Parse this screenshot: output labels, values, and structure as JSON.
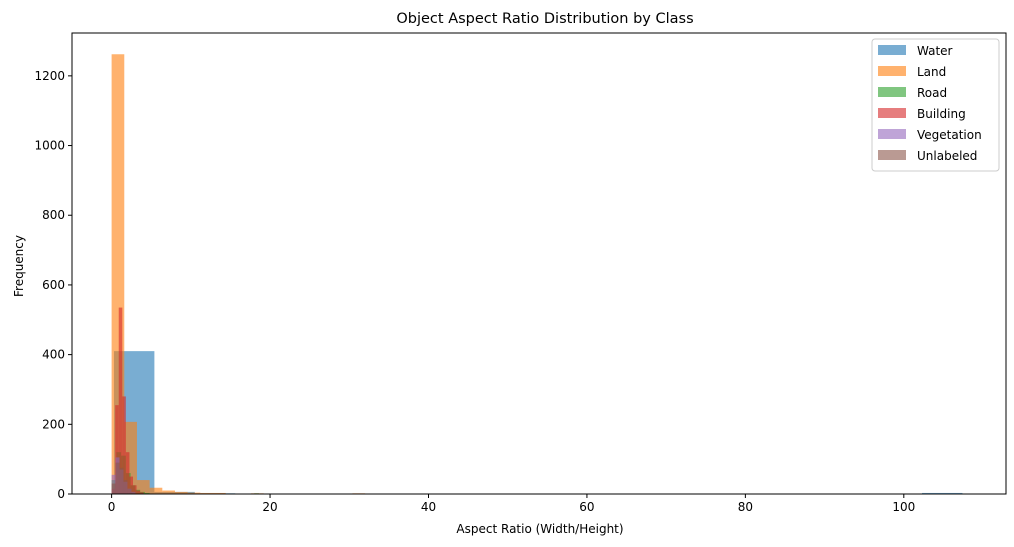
{
  "chart_data": {
    "type": "bar",
    "title": "Object Aspect Ratio Distribution by Class",
    "xlabel": "Aspect Ratio (Width/Height)",
    "ylabel": "Frequency",
    "xlim": [
      -5.0,
      112.9
    ],
    "ylim": [
      0,
      1323
    ],
    "xticks": [
      0,
      20,
      40,
      60,
      80,
      100
    ],
    "yticks": [
      0,
      200,
      400,
      600,
      800,
      1000,
      1200
    ],
    "grid": false,
    "legend_placement": "top-right",
    "series": [
      {
        "name": "Water",
        "color": "#1f77b4",
        "bins": [
          {
            "x0": 0.3,
            "x1": 5.4,
            "count": 410
          },
          {
            "x0": 5.4,
            "x1": 10.5,
            "count": 6
          },
          {
            "x0": 10.5,
            "x1": 15.6,
            "count": 2
          },
          {
            "x0": 102.3,
            "x1": 107.4,
            "count": 3
          }
        ]
      },
      {
        "name": "Land",
        "color": "#ff7f0e",
        "bins": [
          {
            "x0": 0.0,
            "x1": 1.6,
            "count": 1262
          },
          {
            "x0": 1.6,
            "x1": 3.2,
            "count": 207
          },
          {
            "x0": 3.2,
            "x1": 4.8,
            "count": 40
          },
          {
            "x0": 4.8,
            "x1": 6.4,
            "count": 18
          },
          {
            "x0": 6.4,
            "x1": 8.0,
            "count": 10
          },
          {
            "x0": 8.0,
            "x1": 9.6,
            "count": 6
          },
          {
            "x0": 9.6,
            "x1": 11.2,
            "count": 4
          },
          {
            "x0": 11.2,
            "x1": 12.8,
            "count": 3
          },
          {
            "x0": 12.8,
            "x1": 14.4,
            "count": 3
          },
          {
            "x0": 17.6,
            "x1": 19.2,
            "count": 2
          },
          {
            "x0": 30.4,
            "x1": 32.0,
            "count": 2
          }
        ]
      },
      {
        "name": "Road",
        "color": "#2ca02c",
        "bins": [
          {
            "x0": 0.0,
            "x1": 0.6,
            "count": 40
          },
          {
            "x0": 0.6,
            "x1": 1.2,
            "count": 120
          },
          {
            "x0": 1.2,
            "x1": 1.8,
            "count": 110
          },
          {
            "x0": 1.8,
            "x1": 2.4,
            "count": 60
          },
          {
            "x0": 2.4,
            "x1": 3.0,
            "count": 25
          },
          {
            "x0": 3.0,
            "x1": 3.6,
            "count": 12
          },
          {
            "x0": 3.6,
            "x1": 4.2,
            "count": 6
          },
          {
            "x0": 4.2,
            "x1": 4.8,
            "count": 3
          },
          {
            "x0": 18.0,
            "x1": 18.6,
            "count": 2
          }
        ]
      },
      {
        "name": "Building",
        "color": "#d62728",
        "bins": [
          {
            "x0": 0.0,
            "x1": 0.45,
            "count": 15
          },
          {
            "x0": 0.45,
            "x1": 0.9,
            "count": 255
          },
          {
            "x0": 0.9,
            "x1": 1.35,
            "count": 535
          },
          {
            "x0": 1.35,
            "x1": 1.8,
            "count": 280
          },
          {
            "x0": 1.8,
            "x1": 2.25,
            "count": 120
          },
          {
            "x0": 2.25,
            "x1": 2.7,
            "count": 50
          },
          {
            "x0": 2.7,
            "x1": 3.15,
            "count": 25
          },
          {
            "x0": 3.15,
            "x1": 3.6,
            "count": 10
          },
          {
            "x0": 3.6,
            "x1": 4.05,
            "count": 5
          }
        ]
      },
      {
        "name": "Vegetation",
        "color": "#9467bd",
        "bins": [
          {
            "x0": 0.0,
            "x1": 0.5,
            "count": 55
          },
          {
            "x0": 0.5,
            "x1": 1.0,
            "count": 105
          },
          {
            "x0": 1.0,
            "x1": 1.5,
            "count": 70
          },
          {
            "x0": 1.5,
            "x1": 2.0,
            "count": 35
          },
          {
            "x0": 2.0,
            "x1": 2.5,
            "count": 15
          },
          {
            "x0": 2.5,
            "x1": 3.0,
            "count": 6
          }
        ]
      },
      {
        "name": "Unlabeled",
        "color": "#8c564b",
        "bins": [
          {
            "x0": 0.0,
            "x1": 0.5,
            "count": 30
          },
          {
            "x0": 0.5,
            "x1": 1.0,
            "count": 90
          },
          {
            "x0": 1.0,
            "x1": 1.5,
            "count": 75
          },
          {
            "x0": 1.5,
            "x1": 2.0,
            "count": 40
          },
          {
            "x0": 2.0,
            "x1": 2.5,
            "count": 15
          },
          {
            "x0": 2.5,
            "x1": 3.0,
            "count": 5
          }
        ]
      }
    ]
  }
}
